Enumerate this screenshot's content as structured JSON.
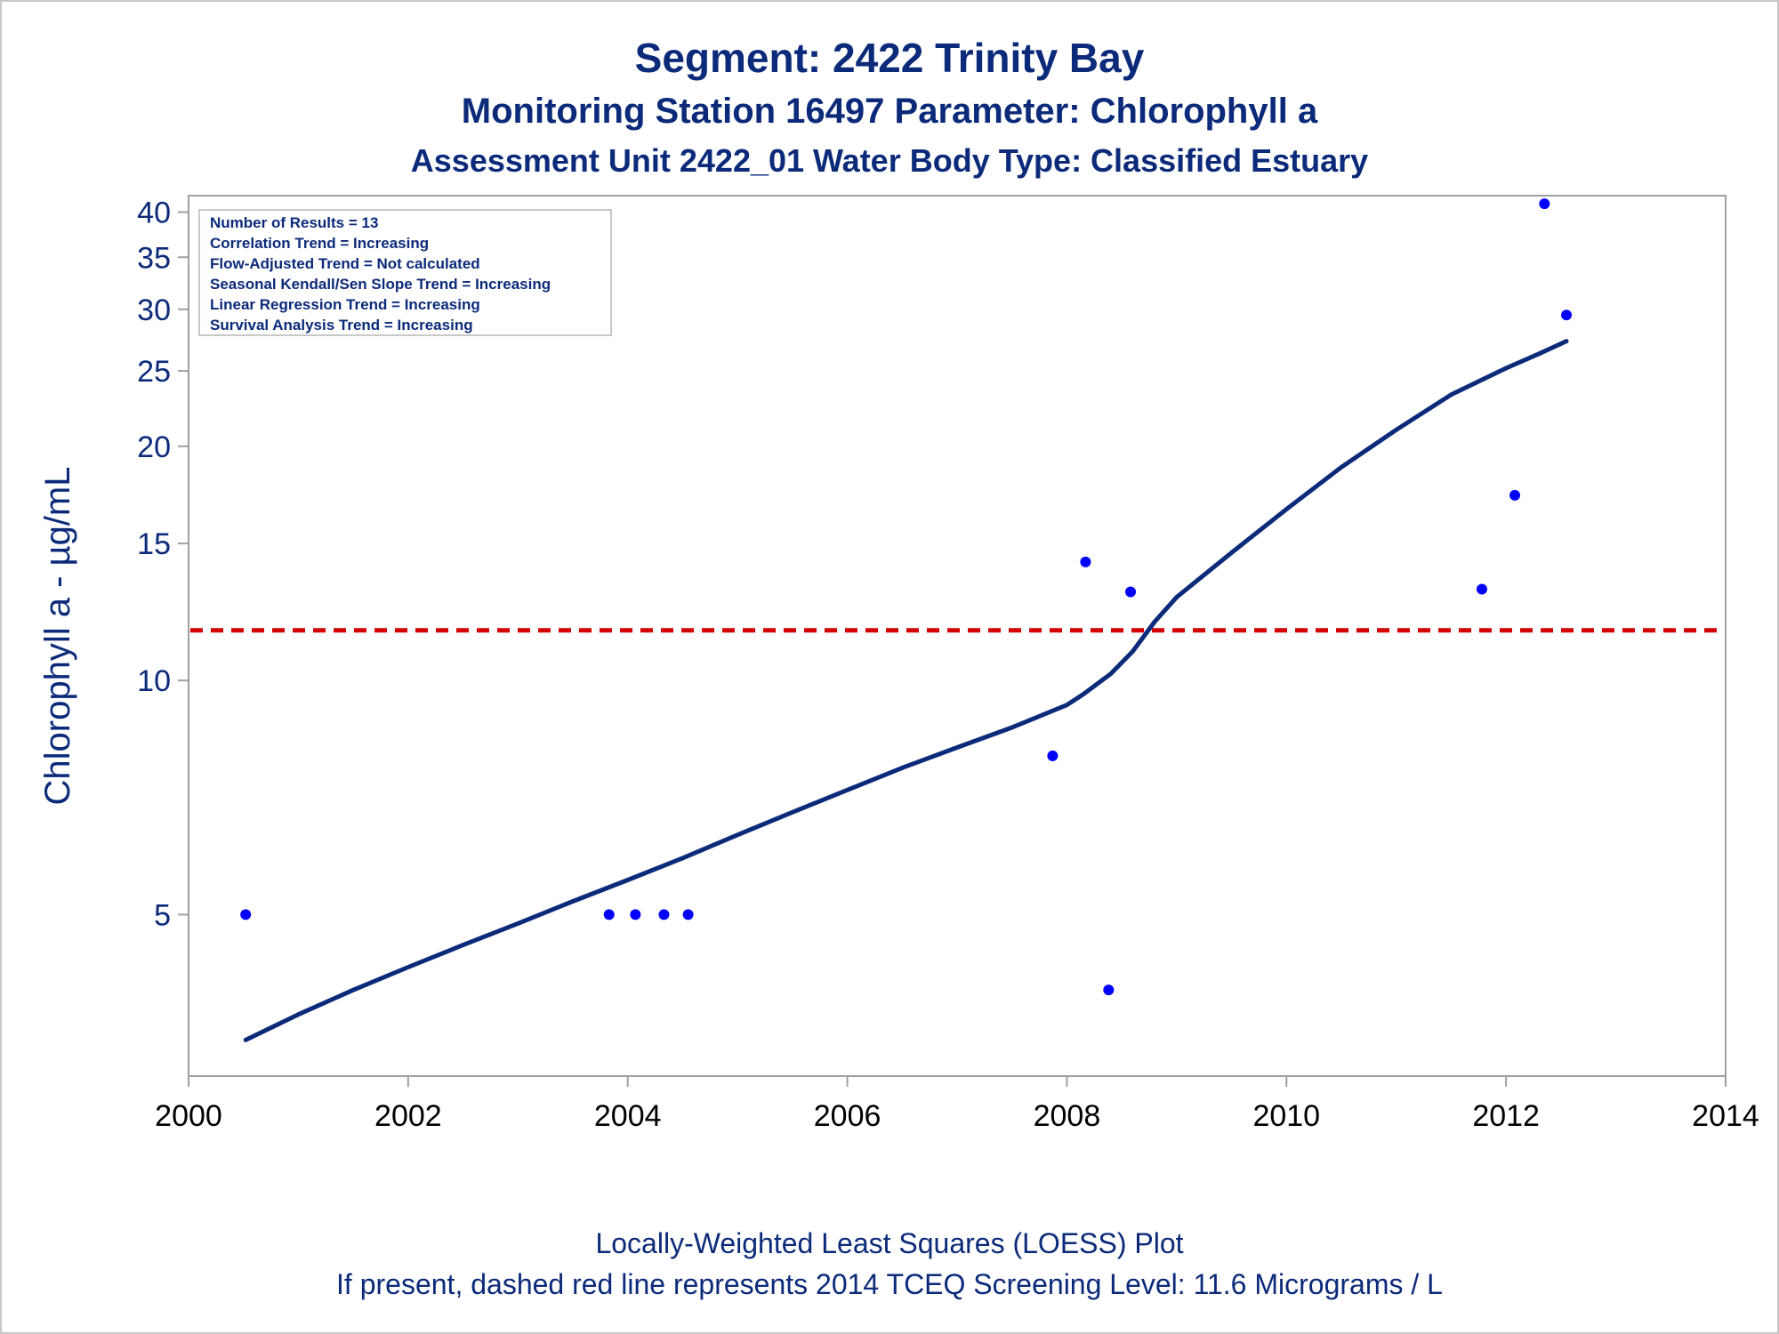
{
  "chart_data": {
    "type": "scatter",
    "title": "Segment: 2422  Trinity Bay",
    "subtitle": "Monitoring Station 16497 Parameter: Chlorophyll a",
    "subtitle2": "Assessment Unit 2422_01   Water Body Type: Classified Estuary",
    "ylabel": "Chlorophyll a -  µg/mL",
    "xlabel": "",
    "footnote1": "Locally-Weighted Least Squares (LOESS) Plot",
    "footnote2": "If present, dashed red line represents 2014 TCEQ Screening Level: 11.6 Micrograms / L",
    "y_scale": "log",
    "xlim": [
      2000,
      2014
    ],
    "ylim": [
      3.1,
      42
    ],
    "x_ticks": [
      2000,
      2002,
      2004,
      2006,
      2008,
      2010,
      2012,
      2014
    ],
    "x_tick_labels": [
      "2000",
      "2002",
      "2004",
      "2006",
      "2008",
      "2010",
      "2012",
      "2014"
    ],
    "y_ticks": [
      5,
      10,
      15,
      20,
      25,
      30,
      35,
      40
    ],
    "y_tick_labels": [
      "5",
      "10",
      "15",
      "20",
      "25",
      "30",
      "35",
      "40"
    ],
    "grid": false,
    "legend_box": {
      "position": "top-left",
      "lines": [
        "Number of Results = 13",
        "Correlation Trend = Increasing",
        "Flow-Adjusted Trend = Not calculated",
        "Seasonal Kendall/Sen Slope Trend = Increasing",
        "Linear Regression Trend = Increasing",
        "Survival Analysis Trend = Increasing"
      ]
    },
    "series": [
      {
        "kind": "points",
        "color": "#0000ff",
        "x": [
          2000.52,
          2003.83,
          2004.07,
          2004.33,
          2004.55,
          2007.87,
          2008.17,
          2008.38,
          2008.58,
          2011.78,
          2012.08,
          2012.35,
          2012.55
        ],
        "y": [
          5.0,
          5.0,
          5.0,
          5.0,
          5.0,
          8.0,
          14.2,
          4.0,
          13.0,
          13.1,
          17.3,
          41.0,
          29.5
        ]
      },
      {
        "kind": "loess",
        "color": "#0b2a7a",
        "x": [
          2000.52,
          2001.0,
          2001.5,
          2002.0,
          2002.5,
          2003.0,
          2003.5,
          2004.0,
          2004.5,
          2005.0,
          2005.5,
          2006.0,
          2006.5,
          2007.0,
          2007.5,
          2008.0,
          2008.15,
          2008.4,
          2008.6,
          2008.8,
          2009.0,
          2009.5,
          2010.0,
          2010.5,
          2011.0,
          2011.5,
          2012.0,
          2012.3,
          2012.55
        ],
        "y": [
          3.45,
          3.72,
          4.0,
          4.28,
          4.57,
          4.87,
          5.2,
          5.54,
          5.91,
          6.33,
          6.77,
          7.23,
          7.72,
          8.2,
          8.7,
          9.3,
          9.6,
          10.2,
          10.9,
          11.9,
          12.8,
          14.6,
          16.6,
          18.8,
          21.0,
          23.3,
          25.2,
          26.3,
          27.3
        ]
      }
    ],
    "reference_line": {
      "y": 11.6,
      "color": "#d40000",
      "style": "dashed",
      "label": "2014 TCEQ Screening Level"
    },
    "colors": {
      "text": "#0b2a7a",
      "axis": "#a0a0a0",
      "points": "#0000ff",
      "loess": "#0b2a7a",
      "screening": "#d40000"
    }
  }
}
